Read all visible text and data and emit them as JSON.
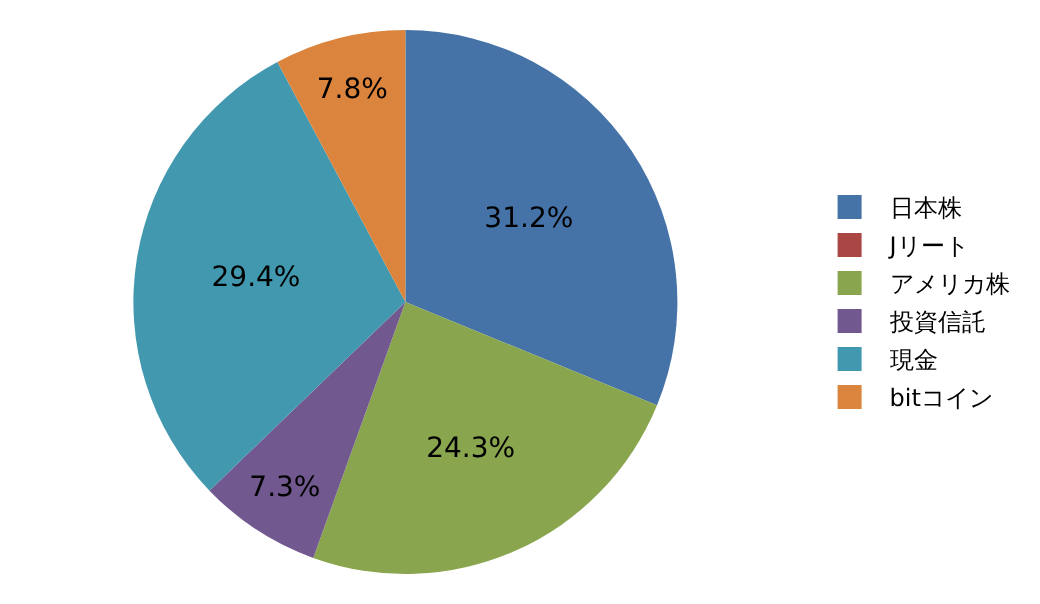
{
  "chart_data": {
    "type": "pie",
    "categories": [
      "日本株",
      "Jリート",
      "アメリカ株",
      "投資信託",
      "現金",
      "bitコイン"
    ],
    "values": [
      31.2,
      0,
      24.3,
      7.3,
      29.4,
      7.8
    ],
    "colors": [
      "#4572a7",
      "#aa4643",
      "#89a54e",
      "#71588f",
      "#4198af",
      "#db843d"
    ],
    "value_labels": [
      "31.2%",
      null,
      "24.3%",
      "7.3%",
      "29.4%",
      "7.8%"
    ],
    "legend": "right"
  }
}
